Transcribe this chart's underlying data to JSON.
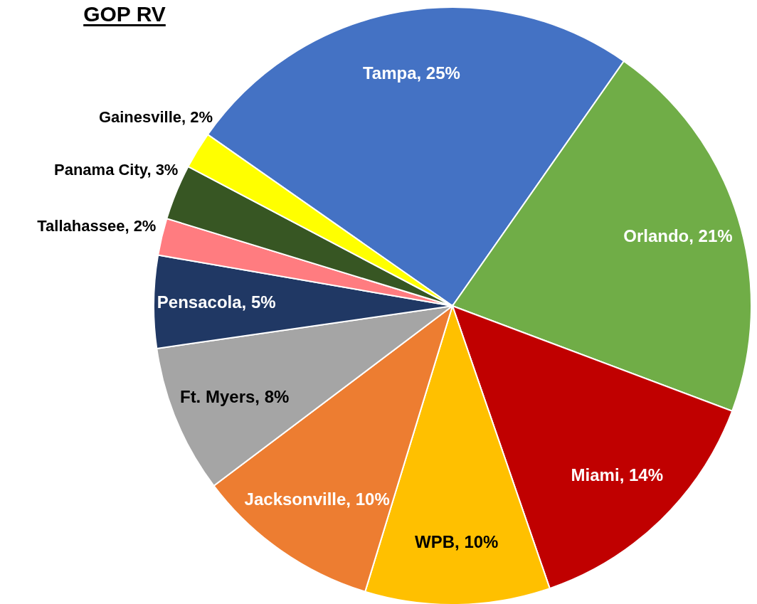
{
  "chart_data": {
    "type": "pie",
    "title": "GOP RV",
    "categories": [
      "Tampa",
      "Orlando",
      "Miami",
      "WPB",
      "Jacksonville",
      "Ft. Myers",
      "Pensacola",
      "Tallahassee",
      "Panama City",
      "Gainesville"
    ],
    "values": [
      25,
      21,
      14,
      10,
      10,
      8,
      5,
      2,
      3,
      2
    ],
    "value_labels": [
      "25%",
      "21%",
      "14%",
      "10%",
      "10%",
      "8%",
      "5%",
      "2%",
      "3%",
      "2%"
    ],
    "colors": [
      "#4472c4",
      "#70ad47",
      "#c00000",
      "#ffc000",
      "#ed7d31",
      "#a5a5a5",
      "#203864",
      "#ff7c80",
      "#375623",
      "#ffff00"
    ]
  }
}
